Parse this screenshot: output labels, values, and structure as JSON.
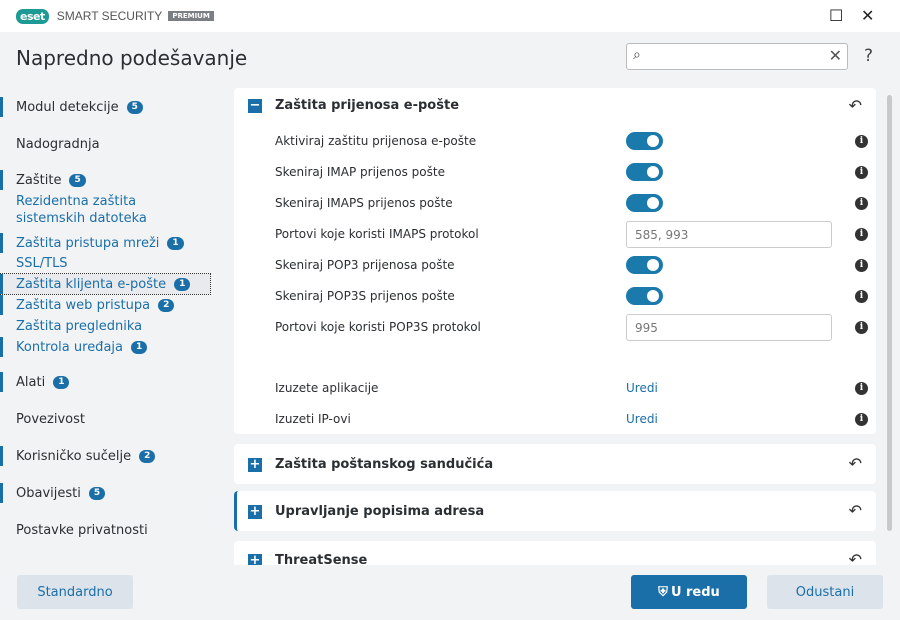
{
  "titlebar": {
    "logo": "eset",
    "product": "SMART SECURITY",
    "edition": "PREMIUM",
    "minimize": "☐",
    "close": "✕"
  },
  "header": {
    "title": "Napredno podešavanje",
    "search_placeholder": "",
    "help": "?"
  },
  "sidebar": [
    {
      "label": "Modul detekcije",
      "badge": "5"
    },
    {
      "label": "Nadogradnja"
    },
    {
      "label": "Zaštite",
      "badge": "5"
    },
    {
      "label": "Rezidentna zaštita sistemskih datoteka"
    },
    {
      "label": "Zaštita pristupa mreži",
      "badge": "1"
    },
    {
      "label": "SSL/TLS"
    },
    {
      "label": "Zaštita klijenta e-pošte",
      "badge": "1",
      "selected": true
    },
    {
      "label": "Zaštita web pristupa",
      "badge": "2"
    },
    {
      "label": "Zaštita preglednika"
    },
    {
      "label": "Kontrola uređaja",
      "badge": "1"
    },
    {
      "label": "Alati",
      "badge": "1"
    },
    {
      "label": "Povezivost"
    },
    {
      "label": "Korisničko sučelje",
      "badge": "2"
    },
    {
      "label": "Obavijesti",
      "badge": "5"
    },
    {
      "label": "Postavke privatnosti"
    }
  ],
  "main": {
    "section1": {
      "title": "Zaštita prijenosa e-pošte",
      "expanded": true,
      "rows": [
        {
          "label": "Aktiviraj zaštitu prijenosa e-pošte",
          "type": "toggle",
          "on": true
        },
        {
          "label": "Skeniraj IMAP prijenos pošte",
          "type": "toggle",
          "on": true
        },
        {
          "label": "Skeniraj IMAPS prijenos pošte",
          "type": "toggle",
          "on": true
        },
        {
          "label": "Portovi koje koristi IMAPS protokol",
          "type": "input",
          "value": "585, 993"
        },
        {
          "label": "Skeniraj POP3 prijenosa pošte",
          "type": "toggle",
          "on": true
        },
        {
          "label": "Skeniraj POP3S prijenos pošte",
          "type": "toggle",
          "on": true
        },
        {
          "label": "Portovi koje koristi POP3S protokol",
          "type": "input",
          "value": "995"
        },
        {
          "label": "Izuzete aplikacije",
          "type": "link",
          "value": "Uredi"
        },
        {
          "label": "Izuzeti IP-ovi",
          "type": "link",
          "value": "Uredi"
        }
      ]
    },
    "section2": {
      "title": "Zaštita poštanskog sandučića"
    },
    "section3": {
      "title": "Upravljanje popisima adresa"
    },
    "section4": {
      "title": "ThreatSense"
    }
  },
  "footer": {
    "default": "Standardno",
    "ok": "U redu",
    "cancel": "Odustani"
  },
  "colors": {
    "accent": "#1b6fa8",
    "toggle": "#1b7aac",
    "brand": "#1e9a96"
  }
}
